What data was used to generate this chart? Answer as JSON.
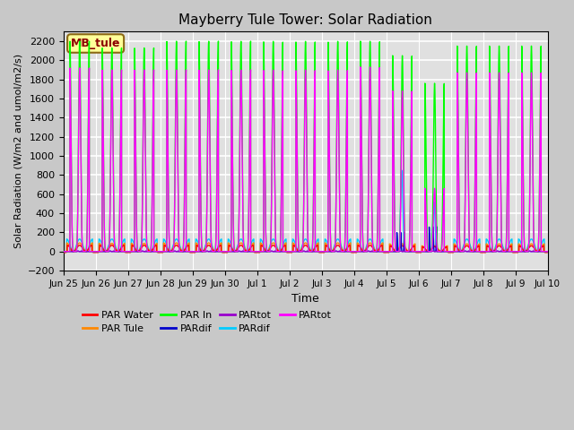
{
  "title": "Mayberry Tule Tower: Solar Radiation",
  "xlabel": "Time",
  "ylabel": "Solar Radiation (W/m2 and umol/m2/s)",
  "ylim": [
    -200,
    2300
  ],
  "yticks": [
    -200,
    0,
    200,
    400,
    600,
    800,
    1000,
    1200,
    1400,
    1600,
    1800,
    2000,
    2200
  ],
  "fig_bg_color": "#c8c8c8",
  "plot_bg_color": "#e0e0e0",
  "legend_label_box": "MB_tule",
  "legend_label_box_bg": "#ffff99",
  "legend_label_box_border": "#8b6914",
  "legend_entries": [
    {
      "label": "PAR Water",
      "color": "#ff0000"
    },
    {
      "label": "PAR Tule",
      "color": "#ff8800"
    },
    {
      "label": "PAR In",
      "color": "#00ff00"
    },
    {
      "label": "PARdif",
      "color": "#0000cc"
    },
    {
      "label": "PARtot",
      "color": "#9900cc"
    },
    {
      "label": "PARdif",
      "color": "#00ccff"
    },
    {
      "label": "PARtot",
      "color": "#ff00ff"
    }
  ],
  "x_tick_labels": [
    "Jun 25",
    "Jun 26",
    "Jun 27",
    "Jun 28",
    "Jun 29",
    "Jun 30",
    "Jul 1",
    "Jul 2",
    "Jul 3",
    "Jul 4",
    "Jul 5",
    "Jul 6",
    "Jul 7",
    "Jul 8",
    "Jul 9",
    "Jul 10"
  ],
  "n_days": 15,
  "colors": {
    "par_water": "#ff0000",
    "par_tule": "#ff8800",
    "par_in": "#00ff00",
    "pardif_blue": "#0000cc",
    "partot_purple": "#9900cc",
    "pardif_cyan": "#00ccff",
    "partot_magenta": "#ff00ff"
  },
  "peaks_par_in": [
    2200,
    2130,
    2130,
    2200,
    2200,
    2200,
    2200,
    2200,
    2200,
    2200,
    2050,
    1760,
    2150,
    2150,
    2150
  ],
  "peaks_partot_mag": [
    1920,
    1900,
    1900,
    1900,
    1900,
    1900,
    1900,
    1900,
    1900,
    1930,
    1680,
    660,
    1870,
    1870,
    1870
  ],
  "peaks_par_tule": [
    90,
    85,
    85,
    90,
    90,
    90,
    90,
    90,
    90,
    90,
    80,
    60,
    80,
    80,
    80
  ],
  "peaks_par_water": [
    65,
    65,
    65,
    65,
    65,
    65,
    65,
    65,
    65,
    65,
    60,
    50,
    60,
    60,
    60
  ],
  "peaks_pardif_cyan": [
    130,
    130,
    130,
    130,
    130,
    130,
    130,
    130,
    130,
    130,
    850,
    520,
    130,
    130,
    130
  ],
  "peaks_pardif_blue": [
    5,
    5,
    5,
    5,
    5,
    5,
    5,
    5,
    5,
    5,
    200,
    260,
    5,
    5,
    5
  ],
  "peaks_partot_purple": [
    5,
    5,
    5,
    5,
    5,
    5,
    5,
    5,
    5,
    5,
    5,
    5,
    5,
    5,
    5
  ]
}
